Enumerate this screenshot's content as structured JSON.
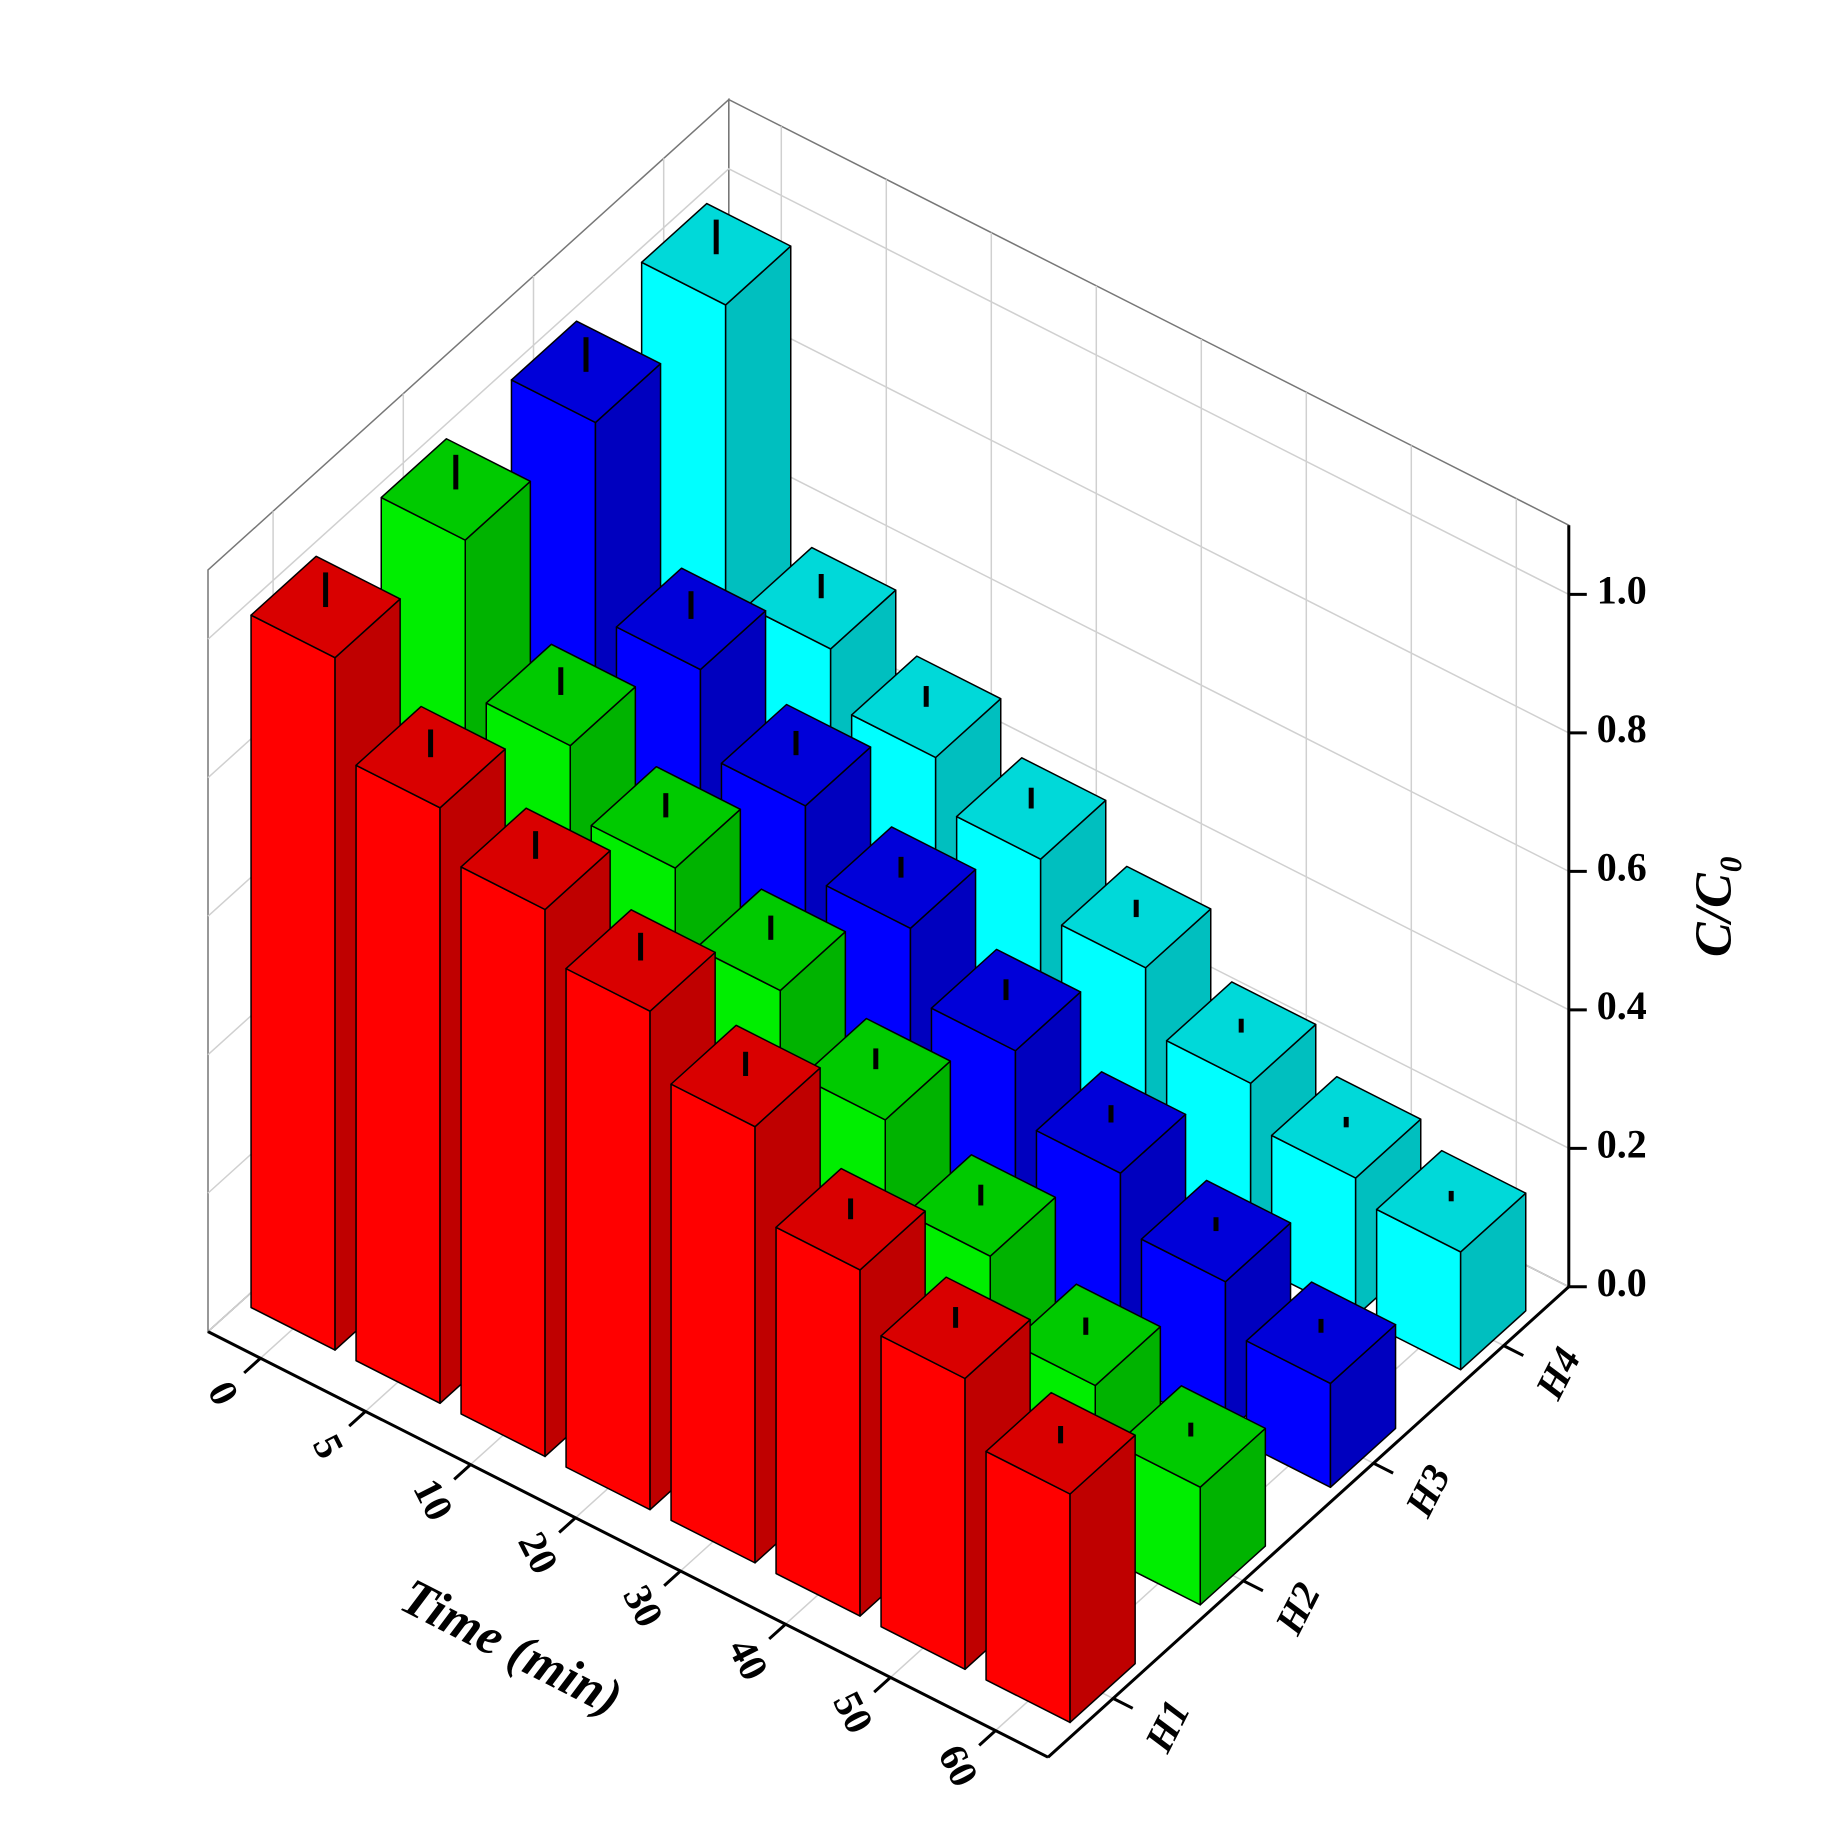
{
  "chart_data": {
    "type": "bar3d",
    "x_label": "Time (min)",
    "z_label": "C/C₀",
    "categories": [
      "0",
      "5",
      "10",
      "20",
      "30",
      "40",
      "50",
      "60"
    ],
    "series": [
      {
        "name": "H1",
        "color": "#ff0000",
        "values": [
          1.0,
          0.86,
          0.79,
          0.72,
          0.63,
          0.5,
          0.42,
          0.33
        ],
        "errors": [
          0.05,
          0.04,
          0.04,
          0.04,
          0.035,
          0.03,
          0.03,
          0.025
        ]
      },
      {
        "name": "H2",
        "color": "#00ee00",
        "values": [
          1.0,
          0.78,
          0.68,
          0.58,
          0.47,
          0.35,
          0.24,
          0.17
        ],
        "errors": [
          0.05,
          0.04,
          0.035,
          0.035,
          0.03,
          0.03,
          0.025,
          0.02
        ]
      },
      {
        "name": "H3",
        "color": "#0000ff",
        "values": [
          1.0,
          0.72,
          0.6,
          0.5,
          0.4,
          0.3,
          0.22,
          0.15
        ],
        "errors": [
          0.05,
          0.04,
          0.035,
          0.03,
          0.03,
          0.025,
          0.02,
          0.02
        ]
      },
      {
        "name": "H4",
        "color": "#00ffff",
        "values": [
          1.0,
          0.58,
          0.5,
          0.43,
          0.35,
          0.26,
          0.2,
          0.17
        ],
        "errors": [
          0.05,
          0.035,
          0.03,
          0.03,
          0.025,
          0.02,
          0.015,
          0.015
        ]
      }
    ],
    "zlim": [
      0,
      1.1
    ],
    "zticks": [
      {
        "value": 0,
        "label": "0.0"
      },
      {
        "value": 0.2,
        "label": "0.2"
      },
      {
        "value": 0.4,
        "label": "0.4"
      },
      {
        "value": 0.6,
        "label": "0.6"
      },
      {
        "value": 0.8,
        "label": "0.8"
      },
      {
        "value": 1.0,
        "label": "1.0"
      }
    ],
    "grid": true
  }
}
